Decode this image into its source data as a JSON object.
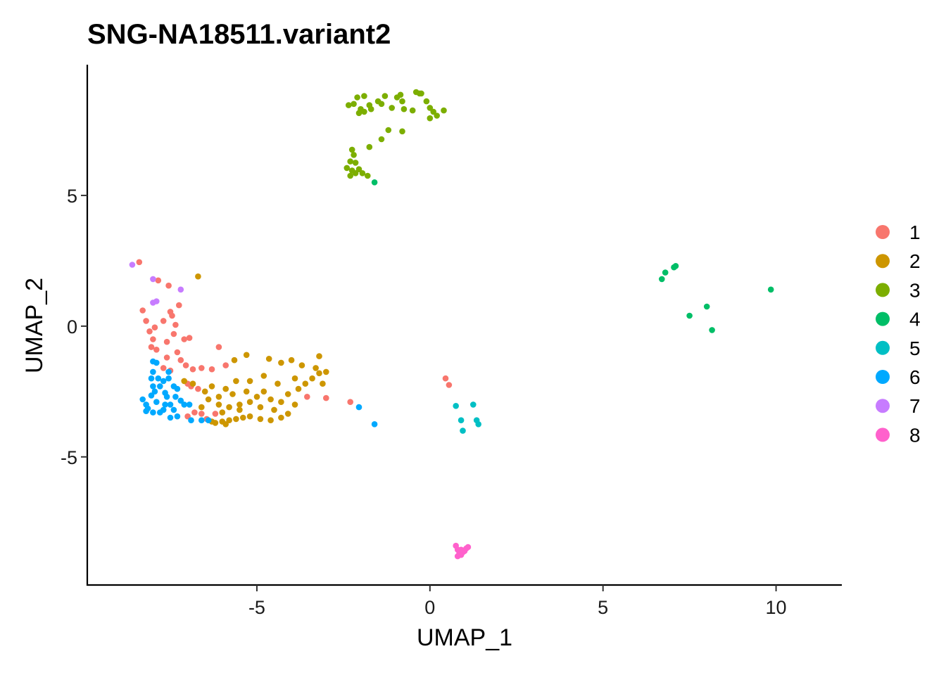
{
  "chart_data": {
    "type": "scatter",
    "title": "SNG-NA18511.variant2",
    "xlabel": "UMAP_1",
    "ylabel": "UMAP_2",
    "xlim": [
      -9.9,
      11.9
    ],
    "ylim": [
      -9.9,
      10.0
    ],
    "xticks": [
      -5,
      0,
      5,
      10
    ],
    "xtick_labels": [
      "-5",
      "0",
      "5",
      "10"
    ],
    "yticks": [
      -5,
      0,
      5
    ],
    "ytick_labels": [
      "-5",
      "0",
      "5"
    ],
    "grid": false,
    "legend": "right",
    "series": [
      {
        "name": "1",
        "color": "#F8766D",
        "points": [
          [
            -8.4,
            2.45
          ],
          [
            -8.3,
            0.6
          ],
          [
            -8.2,
            0.2
          ],
          [
            -8.1,
            -0.2
          ],
          [
            -8.0,
            -0.5
          ],
          [
            -8.05,
            -0.8
          ],
          [
            -7.9,
            -0.9
          ],
          [
            -7.95,
            -0.05
          ],
          [
            -7.85,
            1.75
          ],
          [
            -7.7,
            0.2
          ],
          [
            -7.6,
            -0.6
          ],
          [
            -7.55,
            1.55
          ],
          [
            -7.5,
            0.55
          ],
          [
            -7.45,
            0.4
          ],
          [
            -7.4,
            -0.3
          ],
          [
            -7.35,
            0.05
          ],
          [
            -7.3,
            -1.0
          ],
          [
            -7.25,
            0.8
          ],
          [
            -7.2,
            -1.3
          ],
          [
            -7.6,
            -1.2
          ],
          [
            -7.7,
            -1.6
          ],
          [
            -7.5,
            -1.7
          ],
          [
            -7.1,
            -0.5
          ],
          [
            -6.95,
            -0.45
          ],
          [
            -7.05,
            -1.5
          ],
          [
            -6.85,
            -1.65
          ],
          [
            -7.0,
            -2.2
          ],
          [
            -6.6,
            -1.6
          ],
          [
            -6.3,
            -1.65
          ],
          [
            -6.1,
            -0.8
          ],
          [
            -5.9,
            -1.5
          ],
          [
            -7.0,
            -3.45
          ],
          [
            -6.8,
            -3.3
          ],
          [
            -6.6,
            -3.35
          ],
          [
            -6.45,
            -3.55
          ],
          [
            -6.2,
            -3.35
          ],
          [
            -6.9,
            -2.3
          ],
          [
            -6.7,
            -2.4
          ],
          [
            -3.55,
            -2.7
          ],
          [
            -3.0,
            -2.75
          ],
          [
            -2.3,
            -2.9
          ],
          [
            0.45,
            -2.0
          ],
          [
            0.55,
            -2.25
          ]
        ]
      },
      {
        "name": "2",
        "color": "#CD9600",
        "points": [
          [
            -6.7,
            1.9
          ],
          [
            -7.1,
            -2.1
          ],
          [
            -6.85,
            -2.2
          ],
          [
            -6.5,
            -2.5
          ],
          [
            -6.3,
            -2.3
          ],
          [
            -6.1,
            -2.7
          ],
          [
            -5.9,
            -2.4
          ],
          [
            -5.6,
            -2.1
          ],
          [
            -5.7,
            -2.6
          ],
          [
            -5.5,
            -3.0
          ],
          [
            -5.3,
            -2.5
          ],
          [
            -5.2,
            -2.1
          ],
          [
            -5.0,
            -2.7
          ],
          [
            -4.9,
            -3.1
          ],
          [
            -4.8,
            -2.5
          ],
          [
            -4.6,
            -2.8
          ],
          [
            -4.5,
            -3.2
          ],
          [
            -4.3,
            -2.9
          ],
          [
            -4.1,
            -2.6
          ],
          [
            -3.9,
            -3.0
          ],
          [
            -3.8,
            -2.4
          ],
          [
            -3.6,
            -2.2
          ],
          [
            -3.4,
            -2.0
          ],
          [
            -3.3,
            -1.6
          ],
          [
            -3.2,
            -1.8
          ],
          [
            -3.1,
            -2.2
          ],
          [
            -3.0,
            -1.75
          ],
          [
            -3.2,
            -1.15
          ],
          [
            -3.7,
            -1.5
          ],
          [
            -4.0,
            -1.3
          ],
          [
            -4.3,
            -1.4
          ],
          [
            -4.65,
            -1.25
          ],
          [
            -5.3,
            -1.1
          ],
          [
            -5.65,
            -1.3
          ],
          [
            -6.2,
            -3.7
          ],
          [
            -6.0,
            -3.65
          ],
          [
            -5.8,
            -3.6
          ],
          [
            -5.6,
            -3.55
          ],
          [
            -5.4,
            -3.5
          ],
          [
            -5.2,
            -3.45
          ],
          [
            -4.9,
            -3.55
          ],
          [
            -4.6,
            -3.6
          ],
          [
            -4.3,
            -3.5
          ],
          [
            -4.1,
            -3.35
          ],
          [
            -5.2,
            -2.9
          ],
          [
            -5.5,
            -3.2
          ],
          [
            -6.1,
            -3.0
          ],
          [
            -6.4,
            -2.8
          ],
          [
            -6.6,
            -3.1
          ],
          [
            -6.0,
            -3.3
          ],
          [
            -5.8,
            -3.1
          ],
          [
            -4.8,
            -1.9
          ],
          [
            -4.4,
            -2.2
          ],
          [
            -3.9,
            -2.0
          ],
          [
            -5.9,
            -3.75
          ],
          [
            -6.3,
            -3.65
          ]
        ]
      },
      {
        "name": "3",
        "color": "#7CAE00",
        "points": [
          [
            -2.35,
            8.45
          ],
          [
            -2.2,
            8.5
          ],
          [
            -2.1,
            8.75
          ],
          [
            -2.0,
            8.3
          ],
          [
            -1.9,
            8.8
          ],
          [
            -1.75,
            8.45
          ],
          [
            -1.5,
            8.6
          ],
          [
            -1.3,
            8.8
          ],
          [
            -1.1,
            8.35
          ],
          [
            -0.95,
            8.75
          ],
          [
            -0.85,
            8.85
          ],
          [
            -0.8,
            8.6
          ],
          [
            -0.75,
            8.3
          ],
          [
            -0.5,
            8.25
          ],
          [
            -0.4,
            8.95
          ],
          [
            -0.3,
            8.9
          ],
          [
            -0.25,
            8.9
          ],
          [
            -0.1,
            8.6
          ],
          [
            0.0,
            8.35
          ],
          [
            0.1,
            8.2
          ],
          [
            0.2,
            8.05
          ],
          [
            0.4,
            8.25
          ],
          [
            0.0,
            7.95
          ],
          [
            -2.05,
            8.15
          ],
          [
            -1.9,
            8.2
          ],
          [
            -1.7,
            8.3
          ],
          [
            -1.4,
            8.5
          ],
          [
            -1.2,
            7.5
          ],
          [
            -0.8,
            7.45
          ],
          [
            -1.4,
            7.15
          ],
          [
            -1.75,
            6.85
          ],
          [
            -2.2,
            6.55
          ],
          [
            -2.25,
            6.75
          ],
          [
            -2.3,
            6.3
          ],
          [
            -2.15,
            6.25
          ],
          [
            -2.05,
            6.0
          ],
          [
            -1.95,
            5.85
          ],
          [
            -2.15,
            5.85
          ],
          [
            -2.3,
            5.75
          ],
          [
            -2.25,
            5.95
          ],
          [
            -2.4,
            6.05
          ],
          [
            -1.8,
            5.75
          ]
        ]
      },
      {
        "name": "4",
        "color": "#00BE67",
        "points": [
          [
            -1.6,
            5.5
          ],
          [
            6.7,
            1.8
          ],
          [
            6.8,
            2.05
          ],
          [
            7.05,
            2.25
          ],
          [
            7.1,
            2.3
          ],
          [
            7.5,
            0.4
          ],
          [
            8.0,
            0.75
          ],
          [
            8.15,
            -0.15
          ],
          [
            9.85,
            1.4
          ]
        ]
      },
      {
        "name": "5",
        "color": "#00BFC4",
        "points": [
          [
            0.75,
            -3.05
          ],
          [
            0.9,
            -3.6
          ],
          [
            0.95,
            -4.0
          ],
          [
            1.25,
            -3.0
          ],
          [
            1.35,
            -3.6
          ],
          [
            1.4,
            -3.75
          ]
        ]
      },
      {
        "name": "6",
        "color": "#00A9FF",
        "points": [
          [
            -8.3,
            -2.8
          ],
          [
            -8.2,
            -3.0
          ],
          [
            -8.15,
            -3.15
          ],
          [
            -8.05,
            -2.65
          ],
          [
            -8.0,
            -2.3
          ],
          [
            -8.05,
            -2.0
          ],
          [
            -8.0,
            -1.75
          ],
          [
            -8.0,
            -1.35
          ],
          [
            -7.9,
            -1.4
          ],
          [
            -7.95,
            -2.5
          ],
          [
            -7.9,
            -2.9
          ],
          [
            -7.8,
            -3.3
          ],
          [
            -7.7,
            -3.2
          ],
          [
            -7.8,
            -2.3
          ],
          [
            -7.7,
            -2.1
          ],
          [
            -7.6,
            -2.7
          ],
          [
            -7.5,
            -3.0
          ],
          [
            -7.4,
            -3.2
          ],
          [
            -7.5,
            -3.5
          ],
          [
            -7.3,
            -3.45
          ],
          [
            -7.2,
            -2.85
          ],
          [
            -7.3,
            -2.4
          ],
          [
            -7.55,
            -1.75
          ],
          [
            -7.55,
            -2.0
          ],
          [
            -7.4,
            -2.3
          ],
          [
            -7.35,
            -2.7
          ],
          [
            -7.1,
            -3.0
          ],
          [
            -6.95,
            -3.0
          ],
          [
            -6.9,
            -3.6
          ],
          [
            -6.6,
            -3.6
          ],
          [
            -6.4,
            -3.6
          ],
          [
            -2.05,
            -3.1
          ],
          [
            -1.6,
            -3.75
          ],
          [
            -8.2,
            -3.25
          ],
          [
            -8.0,
            -3.3
          ],
          [
            -7.85,
            -2.0
          ],
          [
            -7.65,
            -2.55
          ],
          [
            -7.65,
            -3.0
          ]
        ]
      },
      {
        "name": "7",
        "color": "#C77CFF",
        "points": [
          [
            -8.6,
            2.35
          ],
          [
            -8.0,
            1.8
          ],
          [
            -8.0,
            0.9
          ],
          [
            -7.9,
            0.95
          ],
          [
            -7.2,
            1.4
          ]
        ]
      },
      {
        "name": "8",
        "color": "#FF61CC",
        "points": [
          [
            0.75,
            -8.4
          ],
          [
            0.8,
            -8.55
          ],
          [
            0.85,
            -8.7
          ],
          [
            0.9,
            -8.55
          ],
          [
            0.95,
            -8.65
          ],
          [
            1.0,
            -8.6
          ],
          [
            1.05,
            -8.5
          ],
          [
            0.85,
            -8.6
          ],
          [
            0.8,
            -8.8
          ],
          [
            0.9,
            -8.75
          ],
          [
            1.1,
            -8.45
          ]
        ]
      }
    ]
  }
}
